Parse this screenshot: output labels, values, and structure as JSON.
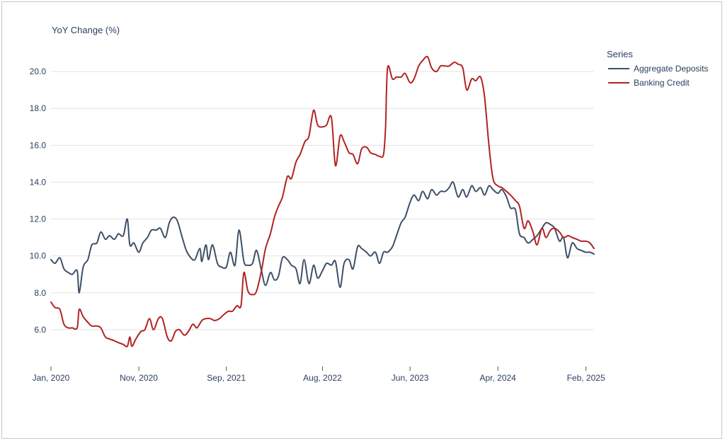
{
  "chart_data": {
    "type": "line",
    "ylabel": "YoY Change (%)",
    "xlabel": "",
    "x_range": [
      "2020-01-01",
      "2025-03-01"
    ],
    "ylim": [
      4.0,
      21.5
    ],
    "y_ticks": [
      6.0,
      8.0,
      10.0,
      12.0,
      14.0,
      16.0,
      18.0,
      20.0
    ],
    "y_tick_labels": [
      "6.0",
      "8.0",
      "10.0",
      "12.0",
      "14.0",
      "16.0",
      "18.0",
      "20.0"
    ],
    "x_ticks": [
      "2020-01-01",
      "2020-11-01",
      "2021-09-01",
      "2022-08-01",
      "2023-06-01",
      "2024-04-01",
      "2025-02-01"
    ],
    "x_tick_labels": [
      "Jan, 2020",
      "Nov, 2020",
      "Sep, 2021",
      "Aug, 2022",
      "Jun, 2023",
      "Apr, 2024",
      "Feb, 2025"
    ],
    "grid": "horizontal",
    "legend": {
      "title": "Series",
      "position": "right"
    },
    "series": [
      {
        "name": "Aggregate Deposits",
        "color": "#3d5068",
        "points": [
          [
            "2020-01-01",
            9.8
          ],
          [
            "2020-01-15",
            9.6
          ],
          [
            "2020-02-01",
            9.9
          ],
          [
            "2020-02-15",
            9.3
          ],
          [
            "2020-03-01",
            9.1
          ],
          [
            "2020-03-15",
            9.0
          ],
          [
            "2020-04-01",
            9.2
          ],
          [
            "2020-04-08",
            8.0
          ],
          [
            "2020-04-22",
            9.4
          ],
          [
            "2020-05-08",
            9.8
          ],
          [
            "2020-05-22",
            10.6
          ],
          [
            "2020-06-08",
            10.7
          ],
          [
            "2020-06-22",
            11.3
          ],
          [
            "2020-07-08",
            10.9
          ],
          [
            "2020-07-22",
            11.1
          ],
          [
            "2020-08-08",
            10.9
          ],
          [
            "2020-08-22",
            11.2
          ],
          [
            "2020-09-08",
            11.1
          ],
          [
            "2020-09-22",
            12.0
          ],
          [
            "2020-10-01",
            10.6
          ],
          [
            "2020-10-15",
            10.7
          ],
          [
            "2020-11-01",
            10.2
          ],
          [
            "2020-11-15",
            10.7
          ],
          [
            "2020-12-01",
            11.0
          ],
          [
            "2020-12-15",
            11.4
          ],
          [
            "2021-01-01",
            11.4
          ],
          [
            "2021-01-15",
            11.5
          ],
          [
            "2021-02-01",
            11.0
          ],
          [
            "2021-02-15",
            11.8
          ],
          [
            "2021-03-01",
            12.1
          ],
          [
            "2021-03-15",
            11.9
          ],
          [
            "2021-04-01",
            11.0
          ],
          [
            "2021-04-15",
            10.3
          ],
          [
            "2021-05-01",
            9.9
          ],
          [
            "2021-05-15",
            9.8
          ],
          [
            "2021-06-01",
            10.4
          ],
          [
            "2021-06-08",
            9.7
          ],
          [
            "2021-06-22",
            10.6
          ],
          [
            "2021-07-01",
            9.8
          ],
          [
            "2021-07-15",
            10.6
          ],
          [
            "2021-08-01",
            9.6
          ],
          [
            "2021-08-15",
            9.4
          ],
          [
            "2021-09-01",
            9.4
          ],
          [
            "2021-09-15",
            10.2
          ],
          [
            "2021-10-01",
            9.5
          ],
          [
            "2021-10-15",
            11.4
          ],
          [
            "2021-11-01",
            9.7
          ],
          [
            "2021-11-15",
            9.5
          ],
          [
            "2021-12-01",
            9.6
          ],
          [
            "2021-12-15",
            10.3
          ],
          [
            "2022-01-01",
            9.2
          ],
          [
            "2022-01-15",
            8.4
          ],
          [
            "2022-02-01",
            9.1
          ],
          [
            "2022-02-15",
            8.7
          ],
          [
            "2022-03-01",
            8.9
          ],
          [
            "2022-03-15",
            9.9
          ],
          [
            "2022-04-01",
            9.8
          ],
          [
            "2022-04-15",
            9.5
          ],
          [
            "2022-05-01",
            9.3
          ],
          [
            "2022-05-15",
            8.5
          ],
          [
            "2022-05-29",
            9.8
          ],
          [
            "2022-06-15",
            8.5
          ],
          [
            "2022-07-01",
            9.5
          ],
          [
            "2022-07-15",
            8.8
          ],
          [
            "2022-08-01",
            9.2
          ],
          [
            "2022-08-15",
            9.6
          ],
          [
            "2022-09-01",
            9.5
          ],
          [
            "2022-09-15",
            9.7
          ],
          [
            "2022-10-01",
            8.3
          ],
          [
            "2022-10-15",
            9.6
          ],
          [
            "2022-11-01",
            9.8
          ],
          [
            "2022-11-15",
            9.3
          ],
          [
            "2022-12-01",
            10.5
          ],
          [
            "2022-12-15",
            10.4
          ],
          [
            "2023-01-01",
            10.2
          ],
          [
            "2023-01-15",
            10.0
          ],
          [
            "2023-02-01",
            10.2
          ],
          [
            "2023-02-15",
            9.6
          ],
          [
            "2023-03-01",
            10.2
          ],
          [
            "2023-03-15",
            10.2
          ],
          [
            "2023-04-01",
            10.5
          ],
          [
            "2023-04-15",
            11.1
          ],
          [
            "2023-05-01",
            11.8
          ],
          [
            "2023-05-15",
            12.1
          ],
          [
            "2023-06-01",
            12.9
          ],
          [
            "2023-06-15",
            13.3
          ],
          [
            "2023-07-01",
            13.0
          ],
          [
            "2023-07-15",
            13.5
          ],
          [
            "2023-08-01",
            13.1
          ],
          [
            "2023-08-15",
            13.6
          ],
          [
            "2023-09-01",
            13.3
          ],
          [
            "2023-09-15",
            13.5
          ],
          [
            "2023-10-01",
            13.5
          ],
          [
            "2023-10-15",
            13.7
          ],
          [
            "2023-10-29",
            14.0
          ],
          [
            "2023-11-15",
            13.2
          ],
          [
            "2023-12-01",
            13.6
          ],
          [
            "2023-12-15",
            13.2
          ],
          [
            "2024-01-01",
            13.8
          ],
          [
            "2024-01-15",
            13.5
          ],
          [
            "2024-02-01",
            13.7
          ],
          [
            "2024-02-15",
            13.3
          ],
          [
            "2024-03-01",
            13.8
          ],
          [
            "2024-03-15",
            13.6
          ],
          [
            "2024-04-01",
            13.4
          ],
          [
            "2024-04-15",
            13.6
          ],
          [
            "2024-05-01",
            13.2
          ],
          [
            "2024-05-15",
            12.6
          ],
          [
            "2024-06-01",
            12.5
          ],
          [
            "2024-06-15",
            11.2
          ],
          [
            "2024-07-01",
            11.0
          ],
          [
            "2024-07-15",
            10.7
          ],
          [
            "2024-08-01",
            10.9
          ],
          [
            "2024-08-15",
            11.1
          ],
          [
            "2024-09-01",
            11.5
          ],
          [
            "2024-09-15",
            11.8
          ],
          [
            "2024-10-01",
            11.7
          ],
          [
            "2024-10-15",
            11.5
          ],
          [
            "2024-11-01",
            10.8
          ],
          [
            "2024-11-15",
            11.0
          ],
          [
            "2024-11-29",
            9.9
          ],
          [
            "2024-12-15",
            10.7
          ],
          [
            "2025-01-01",
            10.4
          ],
          [
            "2025-01-15",
            10.3
          ],
          [
            "2025-02-01",
            10.2
          ],
          [
            "2025-02-15",
            10.2
          ],
          [
            "2025-03-01",
            10.1
          ]
        ]
      },
      {
        "name": "Banking Credit",
        "color": "#b22222",
        "points": [
          [
            "2020-01-01",
            7.5
          ],
          [
            "2020-01-15",
            7.2
          ],
          [
            "2020-02-01",
            7.1
          ],
          [
            "2020-02-15",
            6.3
          ],
          [
            "2020-03-01",
            6.1
          ],
          [
            "2020-03-15",
            6.1
          ],
          [
            "2020-04-01",
            6.1
          ],
          [
            "2020-04-08",
            7.1
          ],
          [
            "2020-04-22",
            6.7
          ],
          [
            "2020-05-08",
            6.4
          ],
          [
            "2020-05-22",
            6.2
          ],
          [
            "2020-06-08",
            6.2
          ],
          [
            "2020-06-22",
            6.1
          ],
          [
            "2020-07-08",
            5.6
          ],
          [
            "2020-07-22",
            5.5
          ],
          [
            "2020-08-08",
            5.4
          ],
          [
            "2020-08-22",
            5.3
          ],
          [
            "2020-09-08",
            5.2
          ],
          [
            "2020-09-22",
            5.1
          ],
          [
            "2020-10-01",
            5.6
          ],
          [
            "2020-10-08",
            5.1
          ],
          [
            "2020-10-22",
            5.5
          ],
          [
            "2020-11-08",
            5.9
          ],
          [
            "2020-11-22",
            6.0
          ],
          [
            "2020-12-08",
            6.6
          ],
          [
            "2020-12-22",
            6.0
          ],
          [
            "2021-01-08",
            6.6
          ],
          [
            "2021-01-22",
            6.6
          ],
          [
            "2021-02-08",
            5.6
          ],
          [
            "2021-02-22",
            5.4
          ],
          [
            "2021-03-08",
            5.9
          ],
          [
            "2021-03-22",
            6.0
          ],
          [
            "2021-04-08",
            5.7
          ],
          [
            "2021-04-22",
            5.9
          ],
          [
            "2021-05-08",
            6.3
          ],
          [
            "2021-05-22",
            6.1
          ],
          [
            "2021-06-08",
            6.5
          ],
          [
            "2021-06-22",
            6.6
          ],
          [
            "2021-07-08",
            6.6
          ],
          [
            "2021-07-22",
            6.5
          ],
          [
            "2021-08-08",
            6.6
          ],
          [
            "2021-08-22",
            6.8
          ],
          [
            "2021-09-08",
            7.0
          ],
          [
            "2021-09-22",
            7.0
          ],
          [
            "2021-10-08",
            7.3
          ],
          [
            "2021-10-22",
            7.3
          ],
          [
            "2021-11-01",
            9.1
          ],
          [
            "2021-11-15",
            8.1
          ],
          [
            "2021-12-01",
            7.9
          ],
          [
            "2021-12-15",
            8.1
          ],
          [
            "2022-01-01",
            9.2
          ],
          [
            "2022-01-15",
            10.4
          ],
          [
            "2022-02-01",
            11.2
          ],
          [
            "2022-02-15",
            12.1
          ],
          [
            "2022-03-01",
            12.7
          ],
          [
            "2022-03-15",
            13.2
          ],
          [
            "2022-04-01",
            14.3
          ],
          [
            "2022-04-15",
            14.2
          ],
          [
            "2022-05-01",
            15.1
          ],
          [
            "2022-05-15",
            15.5
          ],
          [
            "2022-06-01",
            16.2
          ],
          [
            "2022-06-15",
            16.5
          ],
          [
            "2022-07-01",
            17.9
          ],
          [
            "2022-07-15",
            17.1
          ],
          [
            "2022-08-01",
            17.0
          ],
          [
            "2022-08-15",
            17.1
          ],
          [
            "2022-09-01",
            17.5
          ],
          [
            "2022-09-15",
            14.9
          ],
          [
            "2022-10-01",
            16.5
          ],
          [
            "2022-10-15",
            16.2
          ],
          [
            "2022-11-01",
            15.6
          ],
          [
            "2022-11-15",
            15.5
          ],
          [
            "2022-12-01",
            15.0
          ],
          [
            "2022-12-15",
            15.8
          ],
          [
            "2023-01-01",
            15.9
          ],
          [
            "2023-01-15",
            15.6
          ],
          [
            "2023-02-01",
            15.5
          ],
          [
            "2023-02-15",
            15.4
          ],
          [
            "2023-03-01",
            15.5
          ],
          [
            "2023-03-08",
            17.0
          ],
          [
            "2023-03-15",
            20.2
          ],
          [
            "2023-04-01",
            19.6
          ],
          [
            "2023-04-15",
            19.7
          ],
          [
            "2023-05-01",
            19.7
          ],
          [
            "2023-05-15",
            19.9
          ],
          [
            "2023-06-01",
            19.4
          ],
          [
            "2023-06-15",
            19.6
          ],
          [
            "2023-07-01",
            20.3
          ],
          [
            "2023-07-15",
            20.6
          ],
          [
            "2023-08-01",
            20.8
          ],
          [
            "2023-08-15",
            20.2
          ],
          [
            "2023-09-01",
            20.0
          ],
          [
            "2023-09-15",
            20.3
          ],
          [
            "2023-10-01",
            20.3
          ],
          [
            "2023-10-15",
            20.3
          ],
          [
            "2023-11-01",
            20.5
          ],
          [
            "2023-11-15",
            20.4
          ],
          [
            "2023-12-01",
            20.2
          ],
          [
            "2023-12-15",
            19.0
          ],
          [
            "2024-01-01",
            19.6
          ],
          [
            "2024-01-15",
            19.5
          ],
          [
            "2024-02-01",
            19.7
          ],
          [
            "2024-02-15",
            18.6
          ],
          [
            "2024-03-01",
            16.0
          ],
          [
            "2024-03-15",
            14.2
          ],
          [
            "2024-04-01",
            13.8
          ],
          [
            "2024-04-15",
            13.7
          ],
          [
            "2024-05-01",
            13.5
          ],
          [
            "2024-05-15",
            13.3
          ],
          [
            "2024-06-01",
            13.0
          ],
          [
            "2024-06-15",
            12.7
          ],
          [
            "2024-07-01",
            11.5
          ],
          [
            "2024-07-15",
            11.9
          ],
          [
            "2024-08-01",
            11.3
          ],
          [
            "2024-08-15",
            10.6
          ],
          [
            "2024-09-01",
            11.5
          ],
          [
            "2024-09-15",
            11.0
          ],
          [
            "2024-10-01",
            11.4
          ],
          [
            "2024-10-15",
            11.5
          ],
          [
            "2024-11-01",
            11.3
          ],
          [
            "2024-11-15",
            11.0
          ],
          [
            "2024-12-01",
            11.1
          ],
          [
            "2024-12-15",
            11.0
          ],
          [
            "2025-01-01",
            10.9
          ],
          [
            "2025-01-15",
            10.8
          ],
          [
            "2025-02-01",
            10.8
          ],
          [
            "2025-02-15",
            10.7
          ],
          [
            "2025-03-01",
            10.4
          ]
        ]
      }
    ]
  }
}
